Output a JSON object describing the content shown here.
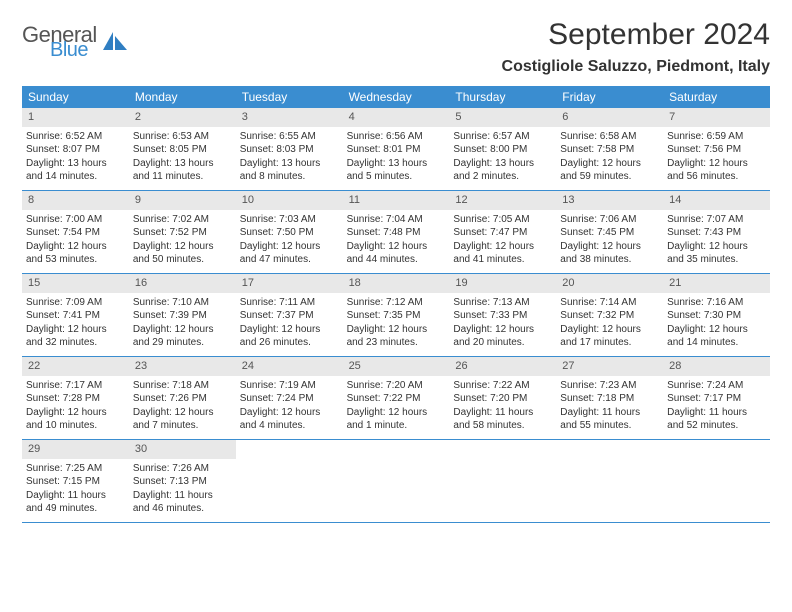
{
  "logo": {
    "general": "General",
    "blue": "Blue"
  },
  "title": "September 2024",
  "location": "Costigliole Saluzzo, Piedmont, Italy",
  "colors": {
    "header_bg": "#3a8dd0",
    "header_text": "#ffffff",
    "daynum_bg": "#e8e8e8",
    "text": "#333333",
    "rule": "#3a8dd0"
  },
  "weekdays": [
    "Sunday",
    "Monday",
    "Tuesday",
    "Wednesday",
    "Thursday",
    "Friday",
    "Saturday"
  ],
  "weeks": [
    [
      {
        "n": "1",
        "sr": "Sunrise: 6:52 AM",
        "ss": "Sunset: 8:07 PM",
        "d1": "Daylight: 13 hours",
        "d2": "and 14 minutes."
      },
      {
        "n": "2",
        "sr": "Sunrise: 6:53 AM",
        "ss": "Sunset: 8:05 PM",
        "d1": "Daylight: 13 hours",
        "d2": "and 11 minutes."
      },
      {
        "n": "3",
        "sr": "Sunrise: 6:55 AM",
        "ss": "Sunset: 8:03 PM",
        "d1": "Daylight: 13 hours",
        "d2": "and 8 minutes."
      },
      {
        "n": "4",
        "sr": "Sunrise: 6:56 AM",
        "ss": "Sunset: 8:01 PM",
        "d1": "Daylight: 13 hours",
        "d2": "and 5 minutes."
      },
      {
        "n": "5",
        "sr": "Sunrise: 6:57 AM",
        "ss": "Sunset: 8:00 PM",
        "d1": "Daylight: 13 hours",
        "d2": "and 2 minutes."
      },
      {
        "n": "6",
        "sr": "Sunrise: 6:58 AM",
        "ss": "Sunset: 7:58 PM",
        "d1": "Daylight: 12 hours",
        "d2": "and 59 minutes."
      },
      {
        "n": "7",
        "sr": "Sunrise: 6:59 AM",
        "ss": "Sunset: 7:56 PM",
        "d1": "Daylight: 12 hours",
        "d2": "and 56 minutes."
      }
    ],
    [
      {
        "n": "8",
        "sr": "Sunrise: 7:00 AM",
        "ss": "Sunset: 7:54 PM",
        "d1": "Daylight: 12 hours",
        "d2": "and 53 minutes."
      },
      {
        "n": "9",
        "sr": "Sunrise: 7:02 AM",
        "ss": "Sunset: 7:52 PM",
        "d1": "Daylight: 12 hours",
        "d2": "and 50 minutes."
      },
      {
        "n": "10",
        "sr": "Sunrise: 7:03 AM",
        "ss": "Sunset: 7:50 PM",
        "d1": "Daylight: 12 hours",
        "d2": "and 47 minutes."
      },
      {
        "n": "11",
        "sr": "Sunrise: 7:04 AM",
        "ss": "Sunset: 7:48 PM",
        "d1": "Daylight: 12 hours",
        "d2": "and 44 minutes."
      },
      {
        "n": "12",
        "sr": "Sunrise: 7:05 AM",
        "ss": "Sunset: 7:47 PM",
        "d1": "Daylight: 12 hours",
        "d2": "and 41 minutes."
      },
      {
        "n": "13",
        "sr": "Sunrise: 7:06 AM",
        "ss": "Sunset: 7:45 PM",
        "d1": "Daylight: 12 hours",
        "d2": "and 38 minutes."
      },
      {
        "n": "14",
        "sr": "Sunrise: 7:07 AM",
        "ss": "Sunset: 7:43 PM",
        "d1": "Daylight: 12 hours",
        "d2": "and 35 minutes."
      }
    ],
    [
      {
        "n": "15",
        "sr": "Sunrise: 7:09 AM",
        "ss": "Sunset: 7:41 PM",
        "d1": "Daylight: 12 hours",
        "d2": "and 32 minutes."
      },
      {
        "n": "16",
        "sr": "Sunrise: 7:10 AM",
        "ss": "Sunset: 7:39 PM",
        "d1": "Daylight: 12 hours",
        "d2": "and 29 minutes."
      },
      {
        "n": "17",
        "sr": "Sunrise: 7:11 AM",
        "ss": "Sunset: 7:37 PM",
        "d1": "Daylight: 12 hours",
        "d2": "and 26 minutes."
      },
      {
        "n": "18",
        "sr": "Sunrise: 7:12 AM",
        "ss": "Sunset: 7:35 PM",
        "d1": "Daylight: 12 hours",
        "d2": "and 23 minutes."
      },
      {
        "n": "19",
        "sr": "Sunrise: 7:13 AM",
        "ss": "Sunset: 7:33 PM",
        "d1": "Daylight: 12 hours",
        "d2": "and 20 minutes."
      },
      {
        "n": "20",
        "sr": "Sunrise: 7:14 AM",
        "ss": "Sunset: 7:32 PM",
        "d1": "Daylight: 12 hours",
        "d2": "and 17 minutes."
      },
      {
        "n": "21",
        "sr": "Sunrise: 7:16 AM",
        "ss": "Sunset: 7:30 PM",
        "d1": "Daylight: 12 hours",
        "d2": "and 14 minutes."
      }
    ],
    [
      {
        "n": "22",
        "sr": "Sunrise: 7:17 AM",
        "ss": "Sunset: 7:28 PM",
        "d1": "Daylight: 12 hours",
        "d2": "and 10 minutes."
      },
      {
        "n": "23",
        "sr": "Sunrise: 7:18 AM",
        "ss": "Sunset: 7:26 PM",
        "d1": "Daylight: 12 hours",
        "d2": "and 7 minutes."
      },
      {
        "n": "24",
        "sr": "Sunrise: 7:19 AM",
        "ss": "Sunset: 7:24 PM",
        "d1": "Daylight: 12 hours",
        "d2": "and 4 minutes."
      },
      {
        "n": "25",
        "sr": "Sunrise: 7:20 AM",
        "ss": "Sunset: 7:22 PM",
        "d1": "Daylight: 12 hours",
        "d2": "and 1 minute."
      },
      {
        "n": "26",
        "sr": "Sunrise: 7:22 AM",
        "ss": "Sunset: 7:20 PM",
        "d1": "Daylight: 11 hours",
        "d2": "and 58 minutes."
      },
      {
        "n": "27",
        "sr": "Sunrise: 7:23 AM",
        "ss": "Sunset: 7:18 PM",
        "d1": "Daylight: 11 hours",
        "d2": "and 55 minutes."
      },
      {
        "n": "28",
        "sr": "Sunrise: 7:24 AM",
        "ss": "Sunset: 7:17 PM",
        "d1": "Daylight: 11 hours",
        "d2": "and 52 minutes."
      }
    ],
    [
      {
        "n": "29",
        "sr": "Sunrise: 7:25 AM",
        "ss": "Sunset: 7:15 PM",
        "d1": "Daylight: 11 hours",
        "d2": "and 49 minutes."
      },
      {
        "n": "30",
        "sr": "Sunrise: 7:26 AM",
        "ss": "Sunset: 7:13 PM",
        "d1": "Daylight: 11 hours",
        "d2": "and 46 minutes."
      },
      null,
      null,
      null,
      null,
      null
    ]
  ]
}
